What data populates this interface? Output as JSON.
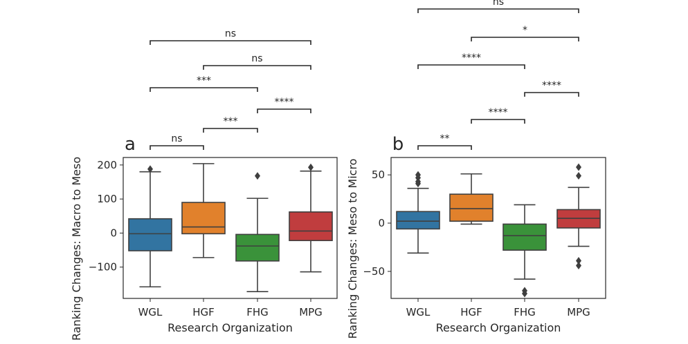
{
  "chart_data": [
    {
      "type": "box",
      "panel_label": "a",
      "xlabel": "Research Organization",
      "ylabel": "Ranking Changes: Macro to Meso",
      "categories": [
        "WGL",
        "HGF",
        "FHG",
        "MPG"
      ],
      "colors": [
        "#3274a1",
        "#e1812c",
        "#3a923a",
        "#c03d3e"
      ],
      "ylim": [
        -192,
        222
      ],
      "yticks": [
        -100,
        0,
        100,
        200
      ],
      "ytick_labels": [
        "−100",
        "0",
        "100",
        "200"
      ],
      "boxes": [
        {
          "category": "WGL",
          "whisker_low": -158,
          "q1": -52,
          "median": -2,
          "q3": 42,
          "whisker_high": 180,
          "outliers": [
            188
          ]
        },
        {
          "category": "HGF",
          "whisker_low": -72,
          "q1": -2,
          "median": 18,
          "q3": 90,
          "whisker_high": 204,
          "outliers": []
        },
        {
          "category": "FHG",
          "whisker_low": -172,
          "q1": -82,
          "median": -38,
          "q3": -4,
          "whisker_high": 102,
          "outliers": [
            168
          ]
        },
        {
          "category": "MPG",
          "whisker_low": -114,
          "q1": -22,
          "median": 6,
          "q3": 62,
          "whisker_high": 182,
          "outliers": [
            193
          ]
        }
      ],
      "significance": [
        {
          "pair": [
            "WGL",
            "HGF"
          ],
          "label": "ns"
        },
        {
          "pair": [
            "HGF",
            "FHG"
          ],
          "label": "***"
        },
        {
          "pair": [
            "FHG",
            "MPG"
          ],
          "label": "****"
        },
        {
          "pair": [
            "WGL",
            "FHG"
          ],
          "label": "***"
        },
        {
          "pair": [
            "HGF",
            "MPG"
          ],
          "label": "ns"
        },
        {
          "pair": [
            "WGL",
            "MPG"
          ],
          "label": "ns"
        }
      ]
    },
    {
      "type": "box",
      "panel_label": "b",
      "xlabel": "Research Organization",
      "ylabel": "Ranking Changes: Meso to Micro",
      "categories": [
        "WGL",
        "HGF",
        "FHG",
        "MPG"
      ],
      "colors": [
        "#3274a1",
        "#e1812c",
        "#3a923a",
        "#c03d3e"
      ],
      "ylim": [
        -78,
        68
      ],
      "yticks": [
        -50,
        0,
        50
      ],
      "ytick_labels": [
        "−50",
        "0",
        "50"
      ],
      "boxes": [
        {
          "category": "WGL",
          "whisker_low": -31,
          "q1": -6,
          "median": 2,
          "q3": 12,
          "whisker_high": 36,
          "outliers": [
            41,
            43,
            47,
            50
          ]
        },
        {
          "category": "HGF",
          "whisker_low": -1,
          "q1": 2,
          "median": 15,
          "q3": 30,
          "whisker_high": 51,
          "outliers": []
        },
        {
          "category": "FHG",
          "whisker_low": -58,
          "q1": -28,
          "median": -13,
          "q3": -1,
          "whisker_high": 19,
          "outliers": [
            -70,
            -73
          ]
        },
        {
          "category": "MPG",
          "whisker_low": -24,
          "q1": -5,
          "median": 5,
          "q3": 14,
          "whisker_high": 37,
          "outliers": [
            -39,
            -44,
            49,
            58
          ]
        }
      ],
      "significance": [
        {
          "pair": [
            "WGL",
            "HGF"
          ],
          "label": "**"
        },
        {
          "pair": [
            "HGF",
            "FHG"
          ],
          "label": "****"
        },
        {
          "pair": [
            "FHG",
            "MPG"
          ],
          "label": "****"
        },
        {
          "pair": [
            "WGL",
            "FHG"
          ],
          "label": "****"
        },
        {
          "pair": [
            "HGF",
            "MPG"
          ],
          "label": "*"
        },
        {
          "pair": [
            "WGL",
            "MPG"
          ],
          "label": "ns"
        }
      ]
    }
  ]
}
